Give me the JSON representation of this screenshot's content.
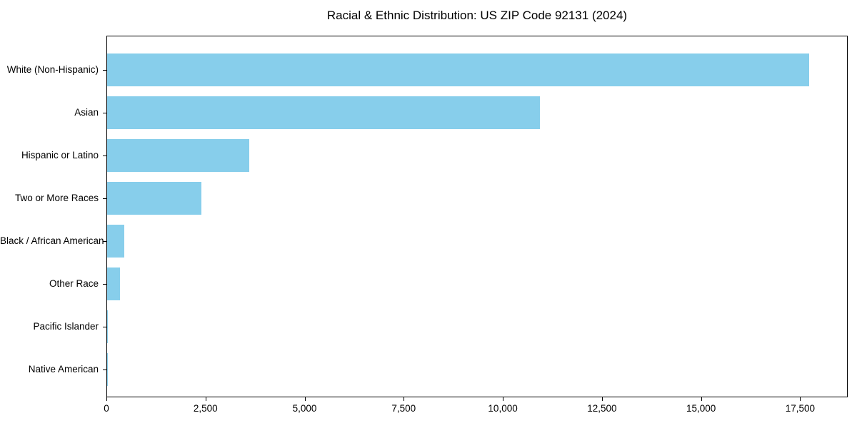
{
  "chart_data": {
    "type": "bar",
    "orientation": "horizontal",
    "title": "Racial & Ethnic Distribution: US ZIP Code 92131 (2024)",
    "categories": [
      "White (Non-Hispanic)",
      "Asian",
      "Hispanic or Latino",
      "Two or More Races",
      "Black / African American",
      "Other Race",
      "Pacific Islander",
      "Native American"
    ],
    "values": [
      17750,
      10940,
      3600,
      2390,
      430,
      325,
      25,
      10
    ],
    "xlabel": "",
    "ylabel": "",
    "xlim": [
      0,
      18700
    ],
    "x_ticks": [
      0,
      2500,
      5000,
      7500,
      10000,
      12500,
      15000,
      17500
    ],
    "x_tick_labels": [
      "0",
      "2,500",
      "5,000",
      "7,500",
      "10,000",
      "12,500",
      "15,000",
      "17,500"
    ],
    "bar_color": "#87CEEB",
    "axis_color": "#000000",
    "background_color": "#ffffff",
    "grid": false,
    "legend_position": "none"
  }
}
